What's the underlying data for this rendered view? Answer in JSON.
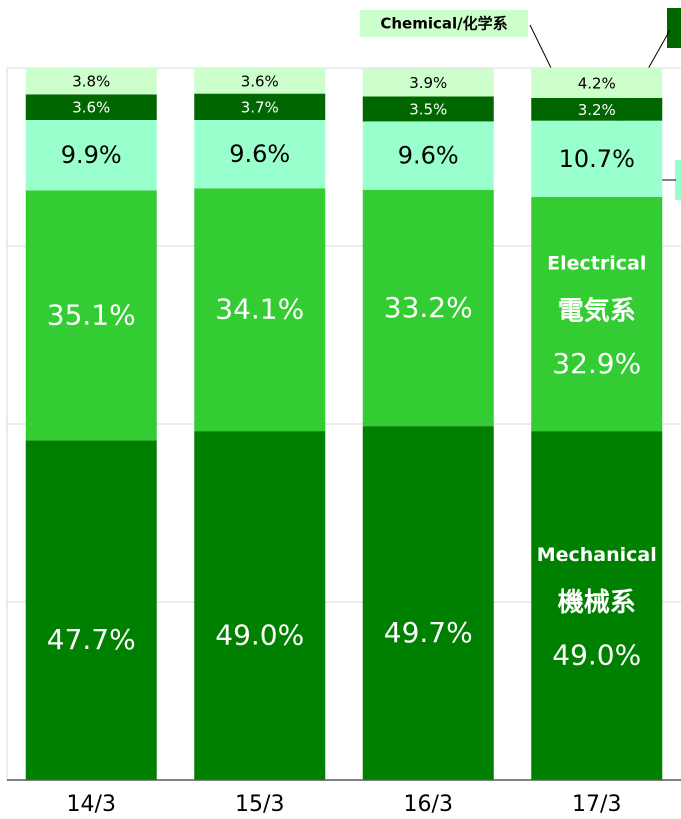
{
  "chart_data": {
    "type": "stacked_bar",
    "categories": [
      "14/3",
      "15/3",
      "16/3",
      "17/3"
    ],
    "series": [
      {
        "name": "Mechanical",
        "name_ja": "機械系",
        "color": "#008000",
        "values": [
          47.7,
          49.0,
          49.7,
          49.0
        ],
        "value_labels": [
          "47.7%",
          "49.0%",
          "49.7%",
          "49.0%"
        ]
      },
      {
        "name": "Electrical",
        "name_ja": "電気系",
        "color": "#33cc33",
        "values": [
          35.1,
          34.1,
          33.2,
          32.9
        ],
        "value_labels": [
          "35.1%",
          "34.1%",
          "33.2%",
          "32.9%"
        ]
      },
      {
        "color": "#99ffcc",
        "values": [
          9.9,
          9.6,
          9.6,
          10.7
        ],
        "value_labels": [
          "9.9%",
          "9.6%",
          "9.6%",
          "10.7%"
        ]
      },
      {
        "color": "#006600",
        "values": [
          3.6,
          3.7,
          3.5,
          3.2
        ],
        "value_labels": [
          "3.6%",
          "3.7%",
          "3.5%",
          "3.2%"
        ]
      },
      {
        "name": "Chemical/化学系",
        "color": "#ccffcc",
        "values": [
          3.8,
          3.6,
          3.9,
          4.2
        ],
        "value_labels": [
          "3.8%",
          "3.6%",
          "3.9%",
          "4.2%"
        ]
      }
    ],
    "ylim": [
      0,
      100
    ],
    "yticks": [
      0,
      25,
      50,
      75,
      100
    ],
    "grid": true
  }
}
